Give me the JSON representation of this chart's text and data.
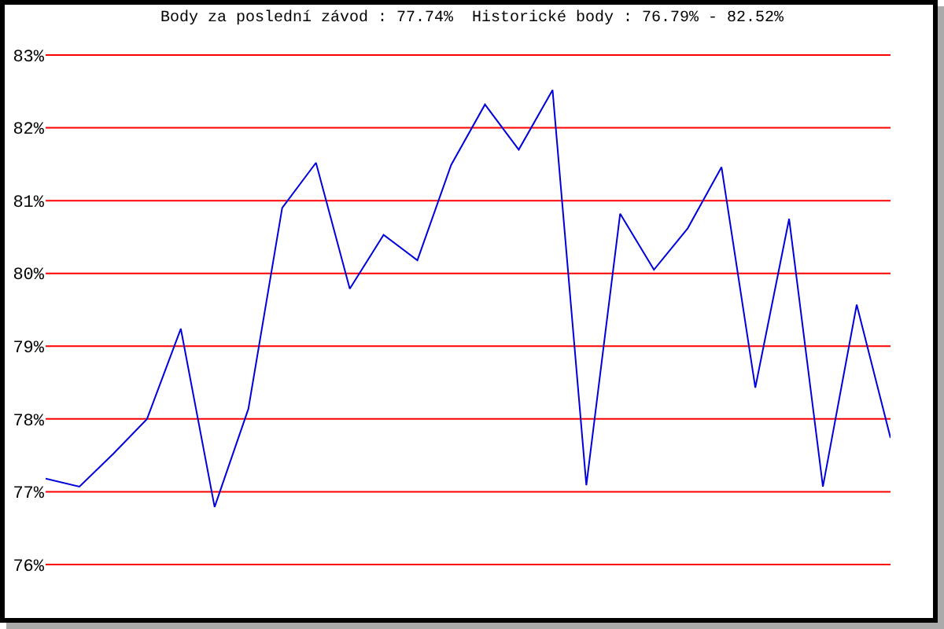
{
  "chart_data": {
    "type": "line",
    "title": "Body za poslední závod : 77.74%  Historické body : 76.79% - 82.52%",
    "categories": [
      null,
      null,
      null,
      null,
      null,
      null,
      null,
      null,
      null,
      null,
      null,
      null,
      null,
      null,
      null,
      null,
      null,
      null,
      null,
      null,
      null,
      null,
      null,
      null,
      null,
      null
    ],
    "series": [
      {
        "color": "#0000dd",
        "values": [
          77.18,
          77.07,
          77.52,
          78.0,
          79.24,
          76.79,
          78.14,
          80.9,
          81.52,
          79.79,
          80.53,
          80.18,
          81.49,
          82.32,
          81.7,
          82.52,
          77.09,
          80.82,
          80.05,
          80.62,
          81.46,
          78.43,
          80.75,
          77.07,
          79.57,
          77.74
        ]
      }
    ],
    "ylim": [
      76,
      83
    ],
    "yticks": [
      {
        "value": 76,
        "label": "76%"
      },
      {
        "value": 77,
        "label": "77%"
      },
      {
        "value": 78,
        "label": "78%"
      },
      {
        "value": 79,
        "label": "79%"
      },
      {
        "value": 80,
        "label": "80%"
      },
      {
        "value": 81,
        "label": "81%"
      },
      {
        "value": 82,
        "label": "82%"
      },
      {
        "value": 83,
        "label": "83%"
      }
    ],
    "grid": "y",
    "tick_labels": "y",
    "line_style": "solid"
  }
}
